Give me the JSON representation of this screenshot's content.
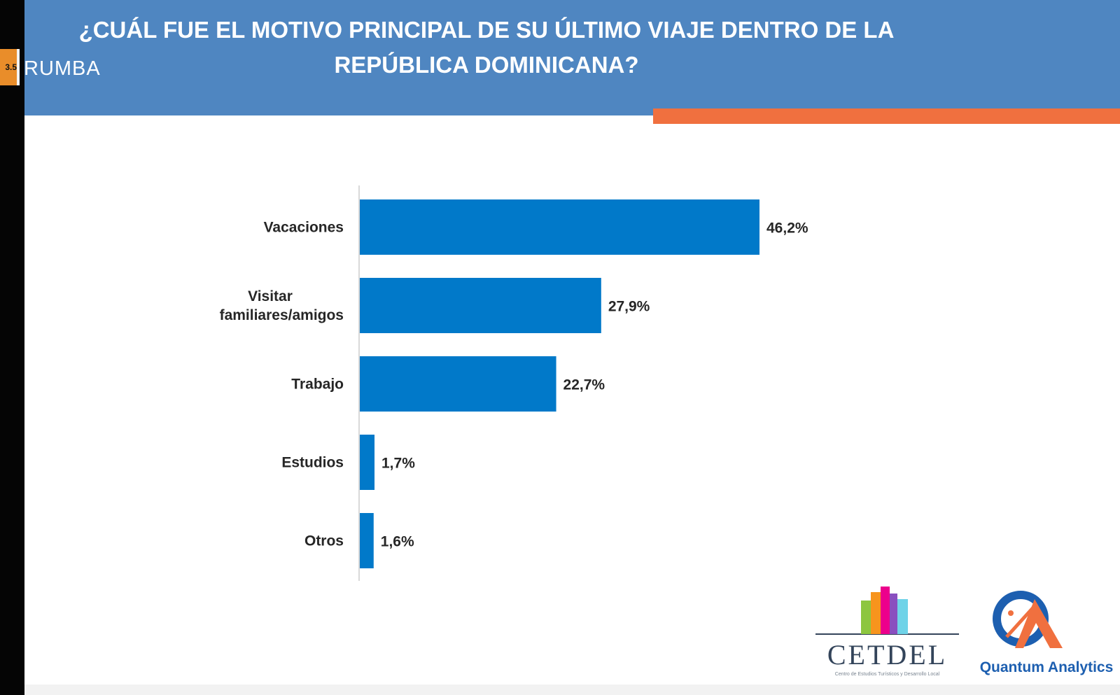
{
  "header": {
    "title": "¿CUÁL FUE EL MOTIVO PRINCIPAL DE SU ÚLTIMO VIAJE DENTRO DE LA REPÚBLICA DOMINICANA?",
    "brand": {
      "badge": "3.5",
      "name": "RUMBA"
    },
    "colors": {
      "band": "#4f86c1",
      "accent": "#f0703f"
    }
  },
  "chart_data": {
    "type": "bar",
    "orientation": "horizontal",
    "title": "¿CUÁL FUE EL MOTIVO PRINCIPAL DE SU ÚLTIMO VIAJE DENTRO DE LA REPÚBLICA DOMINICANA?",
    "categories": [
      [
        "Vacaciones"
      ],
      [
        "Visitar",
        "familiares/amigos"
      ],
      [
        "Trabajo"
      ],
      [
        "Estudios"
      ],
      [
        "Otros"
      ]
    ],
    "values": [
      46.2,
      27.9,
      22.7,
      1.7,
      1.6
    ],
    "value_labels": [
      "46,2%",
      "27,9%",
      "22,7%",
      "1,7%",
      "1,6%"
    ],
    "unit": "%",
    "xlim": [
      0,
      46.2
    ],
    "bar_color": "#0179c9",
    "grid": false,
    "legend": "none"
  },
  "footer": {
    "logos": [
      {
        "name": "CETDEL",
        "subtitle": "Centro de Estudios Turísticos y Desarrollo Local"
      },
      {
        "name": "Quantum Analytics"
      }
    ]
  }
}
